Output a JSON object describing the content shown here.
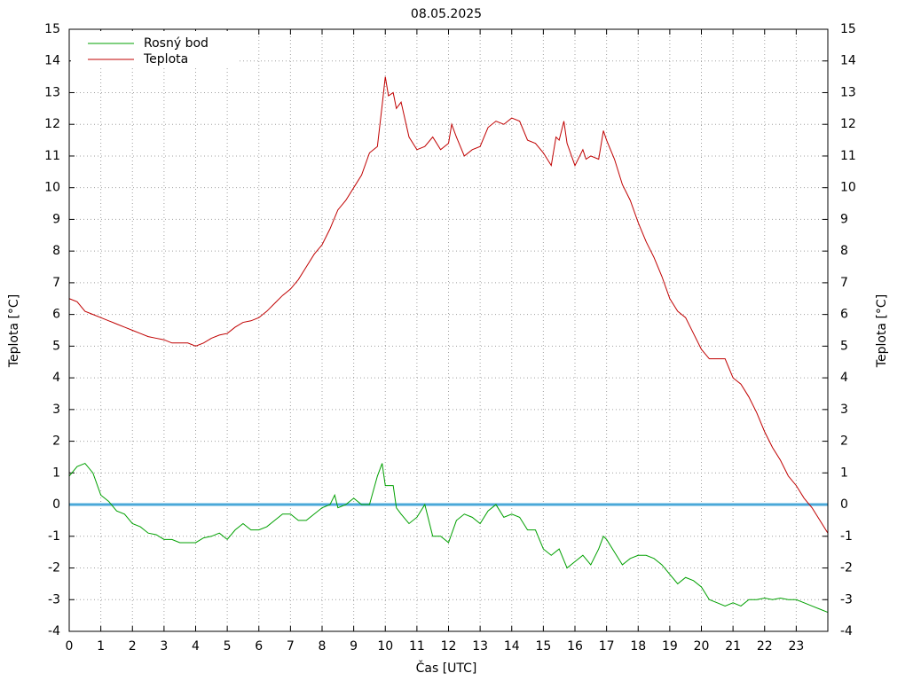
{
  "chart_data": {
    "type": "line",
    "title": "08.05.2025",
    "xlabel": "Čas [UTC]",
    "ylabel": "Teplota [°C]",
    "y2label": "Teplota [°C]",
    "xlim": [
      0,
      24
    ],
    "xticks": [
      0,
      1,
      2,
      3,
      4,
      5,
      6,
      7,
      8,
      9,
      10,
      11,
      12,
      13,
      14,
      15,
      16,
      17,
      18,
      19,
      20,
      21,
      22,
      23
    ],
    "ylim": [
      -4,
      15
    ],
    "yticks": [
      -4,
      -3,
      -2,
      -1,
      0,
      1,
      2,
      3,
      4,
      5,
      6,
      7,
      8,
      9,
      10,
      11,
      12,
      13,
      14,
      15
    ],
    "y2lim": [
      -4,
      15
    ],
    "y2ticks": [
      -4,
      -3,
      -2,
      -1,
      0,
      1,
      2,
      3,
      4,
      5,
      6,
      7,
      8,
      9,
      10,
      11,
      12,
      13,
      14,
      15
    ],
    "grid": true,
    "legend": "upper left",
    "reference_line": {
      "value": 0,
      "color": "#4aa8d8"
    },
    "series": [
      {
        "name": "Rosný bod",
        "color": "#00a000",
        "x": [
          0,
          0.25,
          0.5,
          0.75,
          1,
          1.25,
          1.5,
          1.75,
          2,
          2.25,
          2.5,
          2.75,
          3,
          3.25,
          3.5,
          3.75,
          4,
          4.25,
          4.5,
          4.75,
          5,
          5.25,
          5.5,
          5.75,
          6,
          6.25,
          6.5,
          6.75,
          7,
          7.25,
          7.5,
          7.75,
          8,
          8.25,
          8.4,
          8.5,
          8.75,
          9,
          9.25,
          9.5,
          9.75,
          9.9,
          10,
          10.25,
          10.35,
          10.5,
          10.75,
          11,
          11.25,
          11.5,
          11.75,
          12,
          12.25,
          12.5,
          12.75,
          13,
          13.25,
          13.5,
          13.75,
          14,
          14.25,
          14.5,
          14.75,
          15,
          15.25,
          15.5,
          15.75,
          16,
          16.25,
          16.5,
          16.75,
          16.9,
          17,
          17.25,
          17.5,
          17.75,
          18,
          18.25,
          18.5,
          18.75,
          19,
          19.25,
          19.5,
          19.75,
          20,
          20.25,
          20.5,
          20.75,
          21,
          21.25,
          21.5,
          21.75,
          22,
          22.25,
          22.5,
          22.75,
          23,
          23.25,
          23.5,
          23.75,
          24
        ],
        "values": [
          0.9,
          1.2,
          1.3,
          1.0,
          0.3,
          0.1,
          -0.2,
          -0.3,
          -0.6,
          -0.7,
          -0.9,
          -0.95,
          -1.1,
          -1.1,
          -1.2,
          -1.2,
          -1.2,
          -1.05,
          -1.0,
          -0.9,
          -1.1,
          -0.8,
          -0.6,
          -0.8,
          -0.8,
          -0.7,
          -0.5,
          -0.3,
          -0.3,
          -0.5,
          -0.5,
          -0.3,
          -0.1,
          0.0,
          0.3,
          -0.1,
          0.0,
          0.2,
          0.0,
          0.0,
          0.9,
          1.3,
          0.6,
          0.6,
          -0.1,
          -0.3,
          -0.6,
          -0.4,
          0.0,
          -1.0,
          -1.0,
          -1.2,
          -0.5,
          -0.3,
          -0.4,
          -0.6,
          -0.2,
          0.0,
          -0.4,
          -0.3,
          -0.4,
          -0.8,
          -0.8,
          -1.4,
          -1.6,
          -1.4,
          -2.0,
          -1.8,
          -1.6,
          -1.9,
          -1.4,
          -1.0,
          -1.1,
          -1.5,
          -1.9,
          -1.7,
          -1.6,
          -1.6,
          -1.7,
          -1.9,
          -2.2,
          -2.5,
          -2.3,
          -2.4,
          -2.6,
          -3.0,
          -3.1,
          -3.2,
          -3.1,
          -3.2,
          -3.0,
          -3.0,
          -2.95,
          -3.0,
          -2.95,
          -3.0,
          -3.0,
          -3.1,
          -3.2,
          -3.3,
          -3.4
        ]
      },
      {
        "name": "Teplota",
        "color": "#c00000",
        "x": [
          0,
          0.25,
          0.5,
          0.75,
          1,
          1.25,
          1.5,
          1.75,
          2,
          2.25,
          2.5,
          2.75,
          3,
          3.25,
          3.5,
          3.75,
          4,
          4.25,
          4.5,
          4.75,
          5,
          5.25,
          5.5,
          5.75,
          6,
          6.25,
          6.5,
          6.75,
          7,
          7.25,
          7.5,
          7.75,
          8,
          8.25,
          8.5,
          8.75,
          9,
          9.25,
          9.5,
          9.75,
          9.9,
          10,
          10.1,
          10.25,
          10.35,
          10.5,
          10.75,
          11,
          11.25,
          11.5,
          11.75,
          12,
          12.1,
          12.25,
          12.5,
          12.75,
          13,
          13.25,
          13.5,
          13.75,
          14,
          14.25,
          14.5,
          14.75,
          15,
          15.25,
          15.4,
          15.5,
          15.65,
          15.75,
          16,
          16.25,
          16.35,
          16.5,
          16.75,
          16.9,
          17,
          17.25,
          17.5,
          17.75,
          18,
          18.25,
          18.5,
          18.75,
          19,
          19.25,
          19.5,
          19.75,
          20,
          20.25,
          20.5,
          20.75,
          21,
          21.25,
          21.5,
          21.75,
          22,
          22.25,
          22.5,
          22.75,
          23,
          23.25,
          23.5,
          23.75,
          24
        ],
        "values": [
          6.5,
          6.4,
          6.1,
          6.0,
          5.9,
          5.8,
          5.7,
          5.6,
          5.5,
          5.4,
          5.3,
          5.25,
          5.2,
          5.1,
          5.1,
          5.1,
          5.0,
          5.1,
          5.25,
          5.35,
          5.4,
          5.6,
          5.75,
          5.8,
          5.9,
          6.1,
          6.35,
          6.6,
          6.8,
          7.1,
          7.5,
          7.9,
          8.2,
          8.7,
          9.3,
          9.6,
          10.0,
          10.4,
          11.1,
          11.3,
          12.6,
          13.5,
          12.9,
          13.0,
          12.5,
          12.7,
          11.6,
          11.2,
          11.3,
          11.6,
          11.2,
          11.4,
          12.0,
          11.6,
          11.0,
          11.2,
          11.3,
          11.9,
          12.1,
          12.0,
          12.2,
          12.1,
          11.5,
          11.4,
          11.1,
          10.7,
          11.6,
          11.5,
          12.1,
          11.4,
          10.7,
          11.2,
          10.9,
          11.0,
          10.9,
          11.8,
          11.5,
          10.9,
          10.1,
          9.6,
          8.9,
          8.3,
          7.8,
          7.2,
          6.5,
          6.1,
          5.9,
          5.4,
          4.9,
          4.6,
          4.6,
          4.6,
          4.0,
          3.8,
          3.4,
          2.9,
          2.3,
          1.8,
          1.4,
          0.9,
          0.6,
          0.2,
          -0.1,
          -0.5,
          -0.9
        ]
      }
    ]
  }
}
